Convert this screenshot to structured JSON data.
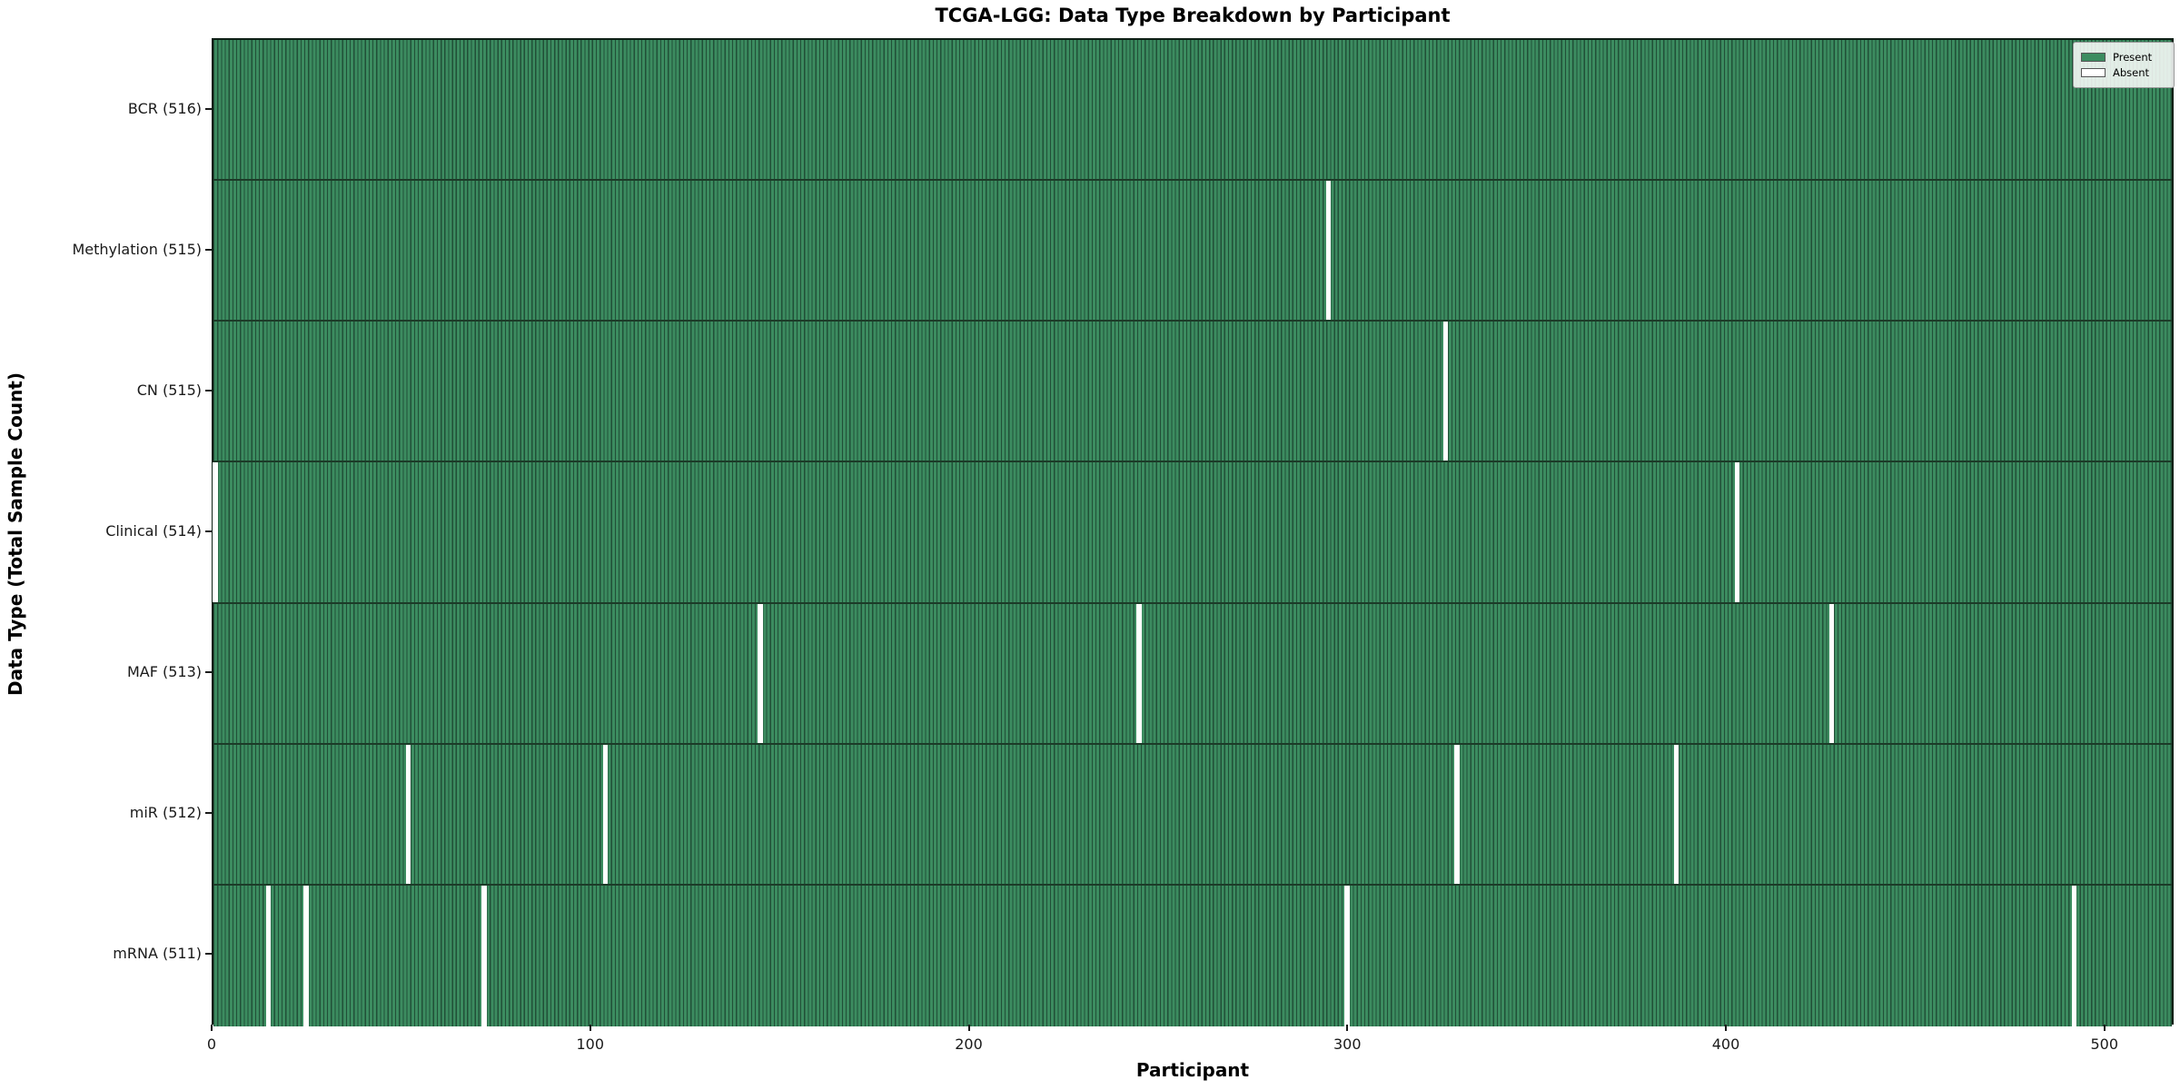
{
  "title": "TCGA-LGG: Data Type Breakdown by Participant",
  "chart_data": {
    "type": "heatmap",
    "title": "TCGA-LGG: Data Type Breakdown by Participant",
    "xlabel": "Participant",
    "ylabel": "Data Type (Total Sample Count)",
    "n_participants": 516,
    "x_ticks": [
      0,
      100,
      200,
      300,
      400,
      500
    ],
    "grid": false,
    "legend_position": "upper right",
    "colors": {
      "present": "#3c8c60",
      "cell_edge": "#214f37",
      "absent": "#ffffff",
      "row_border": "#1c3b28"
    },
    "rows": [
      {
        "data_type": "BCR",
        "label": "BCR (516)",
        "total": 516,
        "absent_participants": []
      },
      {
        "data_type": "Methylation",
        "label": "Methylation (515)",
        "total": 515,
        "absent_participants": [
          294
        ]
      },
      {
        "data_type": "CN",
        "label": "CN (515)",
        "total": 515,
        "absent_participants": [
          325
        ]
      },
      {
        "data_type": "Clinical",
        "label": "Clinical (514)",
        "total": 514,
        "absent_participants": [
          0,
          402
        ]
      },
      {
        "data_type": "MAF",
        "label": "MAF (513)",
        "total": 513,
        "absent_participants": [
          144,
          244,
          427
        ]
      },
      {
        "data_type": "miR",
        "label": "miR (512)",
        "total": 512,
        "absent_participants": [
          51,
          103,
          328,
          386
        ]
      },
      {
        "data_type": "mRNA",
        "label": "mRNA (511)",
        "total": 511,
        "absent_participants": [
          14,
          24,
          71,
          299,
          491
        ]
      }
    ],
    "legend": [
      {
        "label": "Present",
        "color": "#3c8c60"
      },
      {
        "label": "Absent",
        "color": "#ffffff"
      }
    ]
  }
}
